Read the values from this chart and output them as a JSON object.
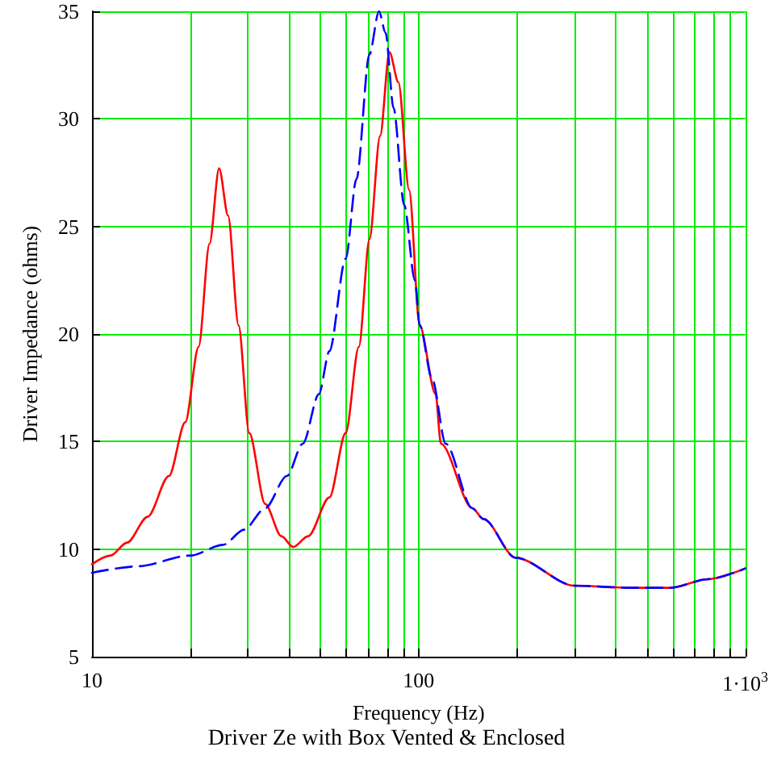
{
  "chart_data": {
    "type": "line",
    "title": "Driver Ze with Box Vented & Enclosed",
    "xlabel": "Frequency (Hz)",
    "ylabel": "Driver Impedance (ohms)",
    "log": "x",
    "grid": true,
    "marker": "none",
    "xlim": [
      10,
      1000
    ],
    "xticks": [
      10,
      {
        "value": 20,
        "label": null
      },
      {
        "value": 30,
        "label": null
      },
      {
        "value": 40,
        "label": null
      },
      {
        "value": 50,
        "label": null
      },
      {
        "value": 60,
        "label": null
      },
      {
        "value": 70,
        "label": null
      },
      {
        "value": 80,
        "label": null
      },
      {
        "value": 90,
        "label": null
      },
      100,
      {
        "value": 200,
        "label": null
      },
      {
        "value": 300,
        "label": null
      },
      {
        "value": 400,
        "label": null
      },
      {
        "value": 500,
        "label": null
      },
      {
        "value": 600,
        "label": null
      },
      {
        "value": 700,
        "label": null
      },
      {
        "value": 800,
        "label": null
      },
      {
        "value": 900,
        "label": null
      },
      {
        "value": 1000,
        "label": "1·10$^{3}$"
      }
    ],
    "ylim": [
      5,
      35
    ],
    "yticks": [
      5,
      10,
      15,
      20,
      25,
      30,
      35
    ],
    "series": [
      {
        "color": "#ff0000",
        "line_style": "solid",
        "x": [
          10,
          11.4,
          12.8,
          14.8,
          17.2,
          19.3,
          21.2,
          22.9,
          24.5,
          26.1,
          28.1,
          30.3,
          33.9,
          38,
          41.3,
          45.9,
          53.3,
          59.8,
          65.6,
          70.7,
          76.2,
          81.4,
          86.7,
          93.5,
          100.7,
          112.7,
          117,
          146,
          158,
          198,
          300,
          452,
          590,
          768,
          1000
        ],
        "values": [
          9.3,
          9.7,
          10.3,
          11.5,
          13.4,
          15.9,
          19.4,
          24.2,
          27.7,
          25.5,
          20.4,
          15.4,
          12.1,
          10.6,
          10.1,
          10.6,
          12.4,
          15.4,
          19.4,
          24.4,
          29.2,
          33.1,
          31.7,
          26.7,
          20.4,
          17.2,
          14.9,
          11.9,
          11.4,
          9.6,
          8.3,
          8.2,
          8.2,
          8.6,
          9.1
        ]
      },
      {
        "color": "#0000ff",
        "line_style": "dashed",
        "x": [
          10,
          13.8,
          20,
          25.2,
          29.2,
          33.9,
          39.5,
          44.2,
          49.5,
          53.3,
          59.8,
          64.5,
          70.7,
          75.6,
          79.2,
          83.8,
          90.3,
          97.4,
          100.8,
          110,
          121,
          146,
          158,
          198,
          300,
          452,
          590,
          768,
          1000
        ],
        "values": [
          8.9,
          9.2,
          9.7,
          10.2,
          10.9,
          11.9,
          13.4,
          14.9,
          17.2,
          19.2,
          23.5,
          27.2,
          33,
          35,
          34,
          30.5,
          26,
          22.5,
          20.4,
          17.9,
          14.9,
          11.9,
          11.4,
          9.6,
          8.3,
          8.2,
          8.2,
          8.6,
          9.1
        ]
      }
    ]
  }
}
